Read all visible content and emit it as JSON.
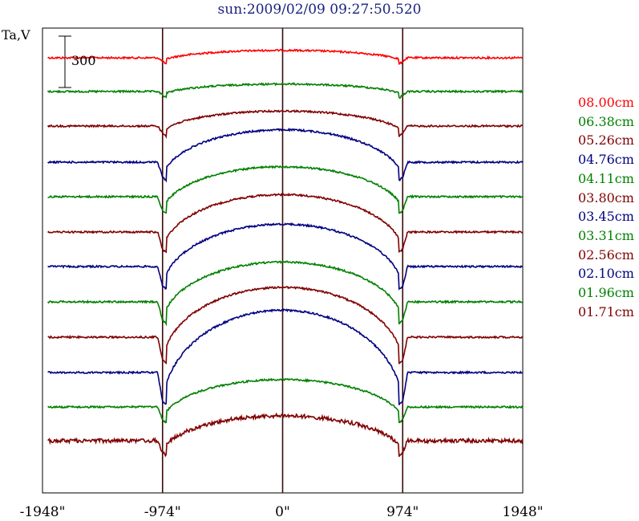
{
  "chart_data": {
    "type": "line",
    "title": "sun:2009/02/09 09:27:50.520",
    "ylabel": "Ta,V",
    "xlabel": "",
    "x_ticks": [
      "-1948\"",
      "-974\"",
      "0\"",
      "974\"",
      "1948\""
    ],
    "x_tick_values": [
      -1948,
      -974,
      0,
      974,
      1948
    ],
    "xlim": [
      -1948,
      1948
    ],
    "vertical_markers": [
      -974,
      0,
      974
    ],
    "scale_bar": {
      "label": "300",
      "value": 300
    },
    "grid": false,
    "legend_position": "right",
    "series": [
      {
        "name": "08.00cm",
        "color": "#ff0000",
        "baseline": 72,
        "disk_rise": 3
      },
      {
        "name": "06.38cm",
        "color": "#008000",
        "baseline": 114,
        "disk_rise": 3
      },
      {
        "name": "05.26cm",
        "color": "#800000",
        "baseline": 157,
        "disk_rise": 6
      },
      {
        "name": "04.76cm",
        "color": "#000080",
        "baseline": 202,
        "disk_rise": 13
      },
      {
        "name": "04.11cm",
        "color": "#008000",
        "baseline": 245,
        "disk_rise": 12
      },
      {
        "name": "03.80cm",
        "color": "#800000",
        "baseline": 289,
        "disk_rise": 15
      },
      {
        "name": "03.45cm",
        "color": "#000080",
        "baseline": 332,
        "disk_rise": 17
      },
      {
        "name": "03.31cm",
        "color": "#008000",
        "baseline": 376,
        "disk_rise": 16
      },
      {
        "name": "02.56cm",
        "color": "#800000",
        "baseline": 420,
        "disk_rise": 20
      },
      {
        "name": "02.10cm",
        "color": "#000080",
        "baseline": 464,
        "disk_rise": 25
      },
      {
        "name": "01.96cm",
        "color": "#008000",
        "baseline": 507,
        "disk_rise": 11
      },
      {
        "name": "01.71cm",
        "color": "#800000",
        "baseline": 549,
        "disk_rise": 10
      }
    ]
  }
}
